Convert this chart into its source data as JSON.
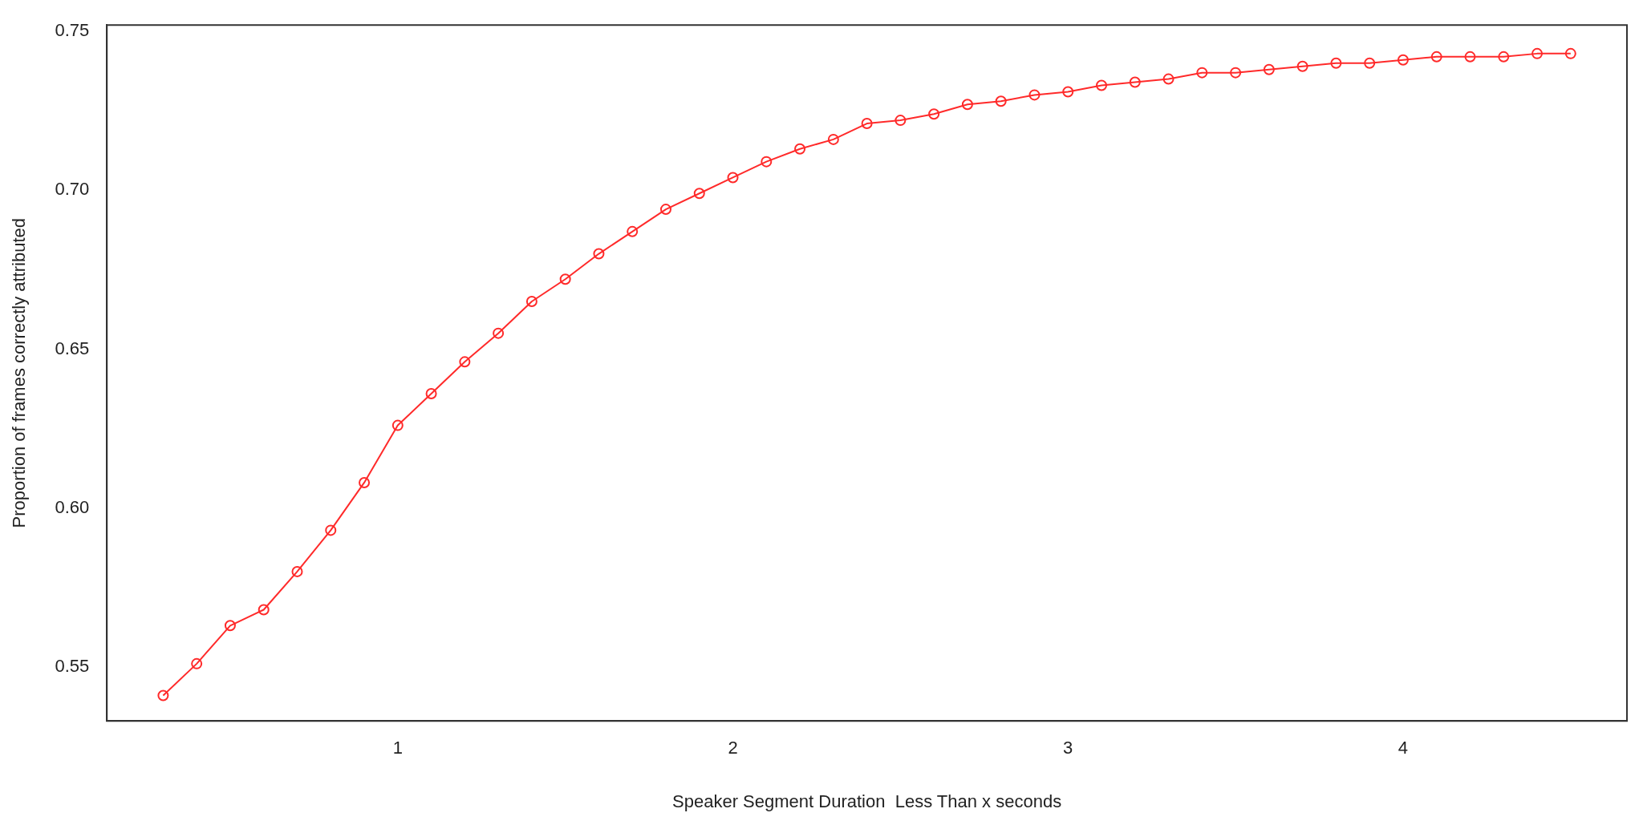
{
  "chart_data": {
    "type": "line",
    "xlabel": "Speaker Segment Duration  Less Than x seconds",
    "ylabel": "Proportion of frames correctly attributed",
    "x": [
      0.3,
      0.4,
      0.5,
      0.6,
      0.7,
      0.8,
      0.9,
      1.0,
      1.1,
      1.2,
      1.3,
      1.4,
      1.5,
      1.6,
      1.7,
      1.8,
      1.9,
      2.0,
      2.1,
      2.2,
      2.3,
      2.4,
      2.5,
      2.6,
      2.7,
      2.8,
      2.9,
      3.0,
      3.1,
      3.2,
      3.3,
      3.4,
      3.5,
      3.6,
      3.7,
      3.8,
      3.9,
      4.0,
      4.1,
      4.2,
      4.3,
      4.4,
      4.5
    ],
    "series": [
      {
        "color": "#ff2a2a",
        "values": [
          0.541,
          0.551,
          0.563,
          0.568,
          0.58,
          0.593,
          0.608,
          0.626,
          0.636,
          0.646,
          0.655,
          0.665,
          0.672,
          0.68,
          0.687,
          0.694,
          0.699,
          0.704,
          0.709,
          0.713,
          0.716,
          0.721,
          0.722,
          0.724,
          0.727,
          0.728,
          0.73,
          0.731,
          0.733,
          0.734,
          0.735,
          0.737,
          0.737,
          0.738,
          0.739,
          0.74,
          0.74,
          0.741,
          0.742,
          0.742,
          0.742,
          0.743,
          0.743
        ]
      }
    ],
    "xlim": [
      0.132,
      4.668
    ],
    "ylim": [
      0.533,
      0.752
    ],
    "xticks": [
      1,
      2,
      3,
      4
    ],
    "yticks": [
      {
        "value": 0.55,
        "label": "0.55"
      },
      {
        "value": 0.6,
        "label": "0.60"
      },
      {
        "value": 0.65,
        "label": "0.65"
      },
      {
        "value": 0.7,
        "label": "0.70"
      },
      {
        "value": 0.75,
        "label": "0.75"
      }
    ],
    "grid": false,
    "legend": false,
    "marker": "circle",
    "line_style": "solid"
  }
}
